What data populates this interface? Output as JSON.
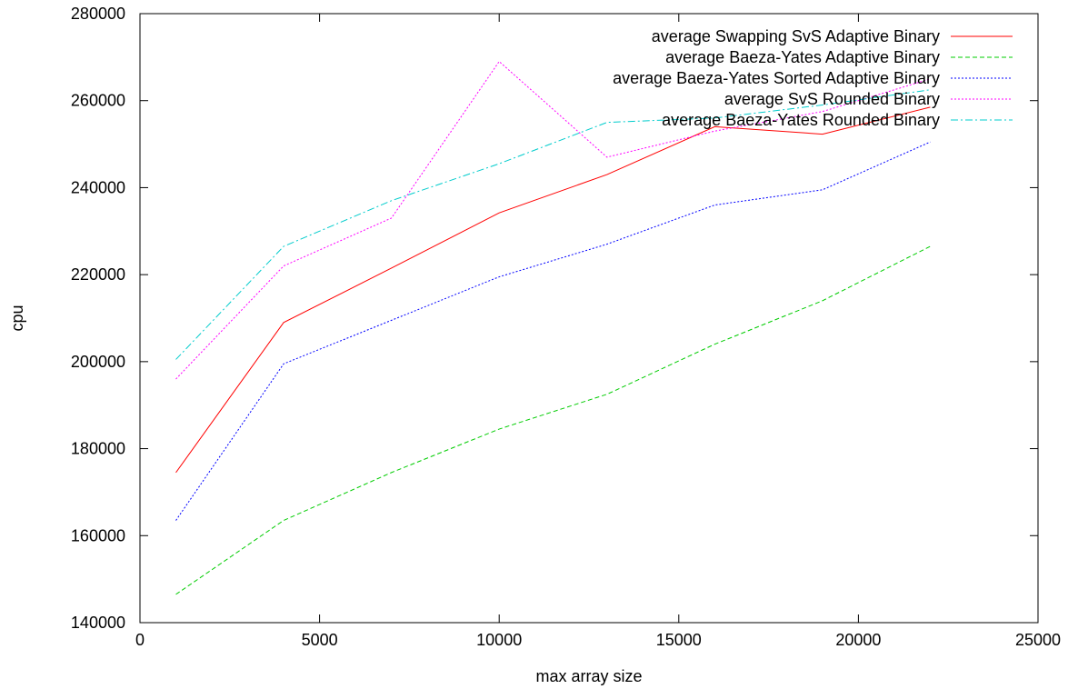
{
  "chart_data": {
    "type": "line",
    "title": "",
    "xlabel": "max array size",
    "ylabel": "cpu",
    "xlim": [
      0,
      25000
    ],
    "ylim": [
      140000,
      280000
    ],
    "xticks": [
      0,
      5000,
      10000,
      15000,
      20000,
      25000
    ],
    "yticks": [
      140000,
      160000,
      180000,
      200000,
      220000,
      240000,
      260000,
      280000
    ],
    "grid": false,
    "legend_position": "top-right",
    "x": [
      1000,
      4000,
      7000,
      10000,
      13000,
      16000,
      19000,
      22000
    ],
    "series": [
      {
        "name": "average Swapping SvS Adaptive Binary",
        "color": "#ff0000",
        "dash": "solid",
        "values": [
          174500,
          209000,
          221500,
          234200,
          243000,
          254000,
          252300,
          258500
        ]
      },
      {
        "name": "average Baeza-Yates Adaptive Binary",
        "color": "#00cc00",
        "dash": "dashed",
        "values": [
          146500,
          163500,
          174500,
          184500,
          192500,
          204000,
          214000,
          226500
        ]
      },
      {
        "name": "average Baeza-Yates Sorted Adaptive Binary",
        "color": "#0000ff",
        "dash": "dotted",
        "values": [
          163500,
          199500,
          209500,
          219500,
          227000,
          236000,
          239500,
          250500
        ]
      },
      {
        "name": "average SvS Rounded Binary",
        "color": "#ff00ff",
        "dash": "dotted",
        "values": [
          196000,
          222000,
          233000,
          269000,
          247000,
          253000,
          257500,
          265000
        ]
      },
      {
        "name": "average Baeza-Yates Rounded Binary",
        "color": "#00cccc",
        "dash": "dashdot",
        "values": [
          200500,
          226500,
          237000,
          245500,
          255000,
          256000,
          259000,
          262500
        ]
      }
    ]
  }
}
